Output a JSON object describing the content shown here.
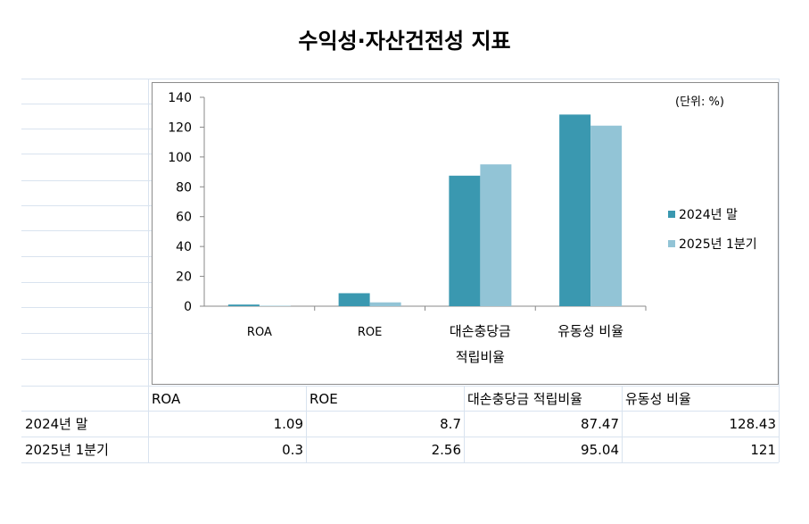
{
  "title": "수익성·자산건전성 지표",
  "chart_data": {
    "type": "bar",
    "unit_note": "(단위: %)",
    "categories": [
      "ROA",
      "ROE",
      "대손충당금\n적립비율",
      "유동성 비율"
    ],
    "series": [
      {
        "name": "2024년 말",
        "values": [
          1.09,
          8.7,
          87.47,
          128.43
        ],
        "color": "#3a98b0"
      },
      {
        "name": "2025년 1분기",
        "values": [
          0.3,
          2.56,
          95.04,
          121
        ],
        "color": "#92c4d6"
      }
    ],
    "ylim": [
      0,
      140
    ],
    "yticks": [
      "0",
      "20",
      "40",
      "60",
      "80",
      "100",
      "120",
      "140"
    ],
    "legend_position": "right",
    "grid": false
  },
  "table": {
    "headers": [
      "ROA",
      "ROE",
      "대손충당금 적립비율",
      "유동성 비율"
    ],
    "rows": [
      {
        "label": "2024년 말",
        "values": [
          "1.09",
          "8.7",
          "87.47",
          "128.43"
        ]
      },
      {
        "label": "2025년 1분기",
        "values": [
          "0.3",
          "2.56",
          "95.04",
          "121"
        ]
      }
    ]
  }
}
